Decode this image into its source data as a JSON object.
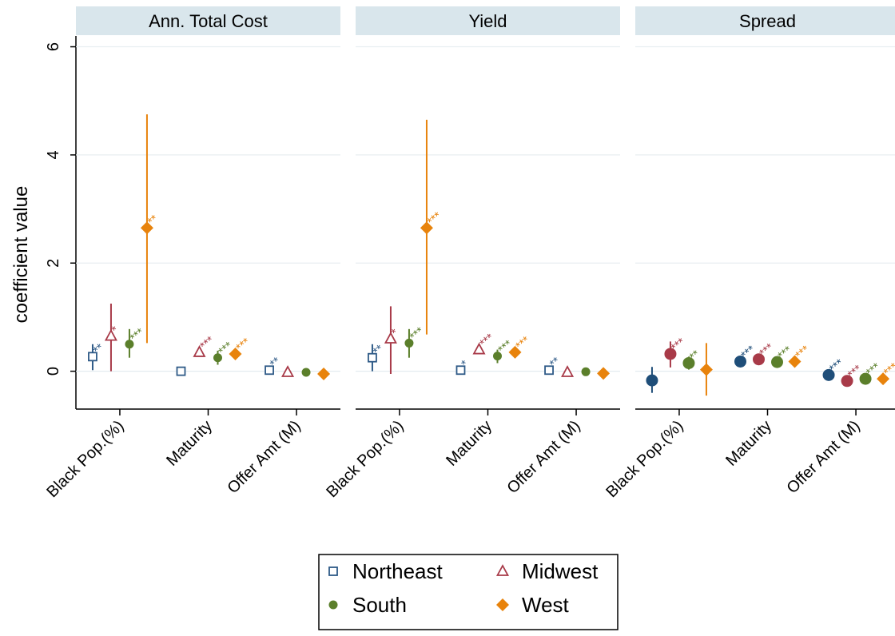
{
  "chart_data": {
    "type": "scatter",
    "ylabel": "coefficient value",
    "ylim": [
      -0.7,
      6.2
    ],
    "yticks": [
      0,
      2,
      4,
      6
    ],
    "grid": true,
    "categories": [
      "Black Pop.(%)",
      "Maturity",
      "Offer Amt (M)"
    ],
    "legend": {
      "placement": "bottom",
      "entries": [
        {
          "name": "Northeast",
          "color": "#2e5a87",
          "marker": "hollow-square"
        },
        {
          "name": "Midwest",
          "color": "#a83a48",
          "marker": "hollow-triangle"
        },
        {
          "name": "South",
          "color": "#5b7f2b",
          "marker": "circle"
        },
        {
          "name": "West",
          "color": "#e8830c",
          "marker": "diamond"
        }
      ]
    },
    "panels": [
      {
        "title": "Ann. Total Cost",
        "series": [
          {
            "name": "Northeast",
            "color": "#2e5a87",
            "marker": "hollow-square",
            "points": [
              {
                "category": "Black Pop.(%)",
                "y": 0.27,
                "lo": 0.02,
                "hi": 0.5,
                "stars": "**"
              },
              {
                "category": "Maturity",
                "y": 0.0,
                "lo": -0.02,
                "hi": 0.02,
                "stars": ""
              },
              {
                "category": "Offer Amt (M)",
                "y": 0.02,
                "lo": -0.01,
                "hi": 0.05,
                "stars": "**"
              }
            ]
          },
          {
            "name": "Midwest",
            "color": "#a83a48",
            "marker": "hollow-triangle",
            "points": [
              {
                "category": "Black Pop.(%)",
                "y": 0.65,
                "lo": 0.0,
                "hi": 1.25,
                "stars": "*"
              },
              {
                "category": "Maturity",
                "y": 0.35,
                "lo": 0.3,
                "hi": 0.4,
                "stars": "***"
              },
              {
                "category": "Offer Amt (M)",
                "y": -0.02,
                "lo": -0.04,
                "hi": 0.0,
                "stars": ""
              }
            ]
          },
          {
            "name": "South",
            "color": "#5b7f2b",
            "marker": "circle",
            "points": [
              {
                "category": "Black Pop.(%)",
                "y": 0.5,
                "lo": 0.25,
                "hi": 0.78,
                "stars": "***"
              },
              {
                "category": "Maturity",
                "y": 0.25,
                "lo": 0.12,
                "hi": 0.38,
                "stars": "***"
              },
              {
                "category": "Offer Amt (M)",
                "y": -0.02,
                "lo": -0.04,
                "hi": 0.0,
                "stars": ""
              }
            ]
          },
          {
            "name": "West",
            "color": "#e8830c",
            "marker": "diamond",
            "points": [
              {
                "category": "Black Pop.(%)",
                "y": 2.65,
                "lo": 0.52,
                "hi": 4.75,
                "stars": "**"
              },
              {
                "category": "Maturity",
                "y": 0.32,
                "lo": 0.22,
                "hi": 0.42,
                "stars": "***"
              },
              {
                "category": "Offer Amt (M)",
                "y": -0.05,
                "lo": -0.08,
                "hi": -0.02,
                "stars": ""
              }
            ]
          }
        ]
      },
      {
        "title": "Yield",
        "series": [
          {
            "name": "Northeast",
            "color": "#2e5a87",
            "marker": "hollow-square",
            "points": [
              {
                "category": "Black Pop.(%)",
                "y": 0.25,
                "lo": 0.0,
                "hi": 0.5,
                "stars": "**"
              },
              {
                "category": "Maturity",
                "y": 0.02,
                "lo": 0.0,
                "hi": 0.04,
                "stars": "*"
              },
              {
                "category": "Offer Amt (M)",
                "y": 0.02,
                "lo": -0.01,
                "hi": 0.05,
                "stars": "**"
              }
            ]
          },
          {
            "name": "Midwest",
            "color": "#a83a48",
            "marker": "hollow-triangle",
            "points": [
              {
                "category": "Black Pop.(%)",
                "y": 0.6,
                "lo": -0.05,
                "hi": 1.2,
                "stars": "*"
              },
              {
                "category": "Maturity",
                "y": 0.4,
                "lo": 0.35,
                "hi": 0.45,
                "stars": "***"
              },
              {
                "category": "Offer Amt (M)",
                "y": -0.02,
                "lo": -0.04,
                "hi": 0.0,
                "stars": ""
              }
            ]
          },
          {
            "name": "South",
            "color": "#5b7f2b",
            "marker": "circle",
            "points": [
              {
                "category": "Black Pop.(%)",
                "y": 0.52,
                "lo": 0.25,
                "hi": 0.78,
                "stars": "***"
              },
              {
                "category": "Maturity",
                "y": 0.28,
                "lo": 0.15,
                "hi": 0.4,
                "stars": "***"
              },
              {
                "category": "Offer Amt (M)",
                "y": -0.01,
                "lo": -0.03,
                "hi": 0.01,
                "stars": ""
              }
            ]
          },
          {
            "name": "West",
            "color": "#e8830c",
            "marker": "diamond",
            "points": [
              {
                "category": "Black Pop.(%)",
                "y": 2.65,
                "lo": 0.68,
                "hi": 4.65,
                "stars": "***"
              },
              {
                "category": "Maturity",
                "y": 0.35,
                "lo": 0.25,
                "hi": 0.45,
                "stars": "***"
              },
              {
                "category": "Offer Amt (M)",
                "y": -0.04,
                "lo": -0.07,
                "hi": -0.01,
                "stars": ""
              }
            ]
          }
        ]
      },
      {
        "title": "Spread",
        "series": [
          {
            "name": "Northeast",
            "color": "#1f4e79",
            "marker": "circle",
            "points": [
              {
                "category": "Black Pop.(%)",
                "y": -0.17,
                "lo": -0.4,
                "hi": 0.08,
                "stars": ""
              },
              {
                "category": "Maturity",
                "y": 0.18,
                "lo": 0.12,
                "hi": 0.24,
                "stars": "***"
              },
              {
                "category": "Offer Amt (M)",
                "y": -0.07,
                "lo": -0.11,
                "hi": -0.03,
                "stars": "***"
              }
            ]
          },
          {
            "name": "Midwest",
            "color": "#a83a48",
            "marker": "circle",
            "points": [
              {
                "category": "Black Pop.(%)",
                "y": 0.32,
                "lo": 0.07,
                "hi": 0.55,
                "stars": "***"
              },
              {
                "category": "Maturity",
                "y": 0.22,
                "lo": 0.16,
                "hi": 0.28,
                "stars": "***"
              },
              {
                "category": "Offer Amt (M)",
                "y": -0.18,
                "lo": -0.22,
                "hi": -0.14,
                "stars": "***"
              }
            ]
          },
          {
            "name": "South",
            "color": "#5b7f2b",
            "marker": "circle",
            "points": [
              {
                "category": "Black Pop.(%)",
                "y": 0.15,
                "lo": 0.03,
                "hi": 0.27,
                "stars": "**"
              },
              {
                "category": "Maturity",
                "y": 0.17,
                "lo": 0.12,
                "hi": 0.22,
                "stars": "***"
              },
              {
                "category": "Offer Amt (M)",
                "y": -0.14,
                "lo": -0.17,
                "hi": -0.11,
                "stars": "***"
              }
            ]
          },
          {
            "name": "West",
            "color": "#e8830c",
            "marker": "diamond",
            "points": [
              {
                "category": "Black Pop.(%)",
                "y": 0.03,
                "lo": -0.45,
                "hi": 0.52,
                "stars": ""
              },
              {
                "category": "Maturity",
                "y": 0.18,
                "lo": 0.1,
                "hi": 0.26,
                "stars": "***"
              },
              {
                "category": "Offer Amt (M)",
                "y": -0.14,
                "lo": -0.18,
                "hi": -0.1,
                "stars": "***"
              }
            ]
          }
        ]
      }
    ]
  }
}
